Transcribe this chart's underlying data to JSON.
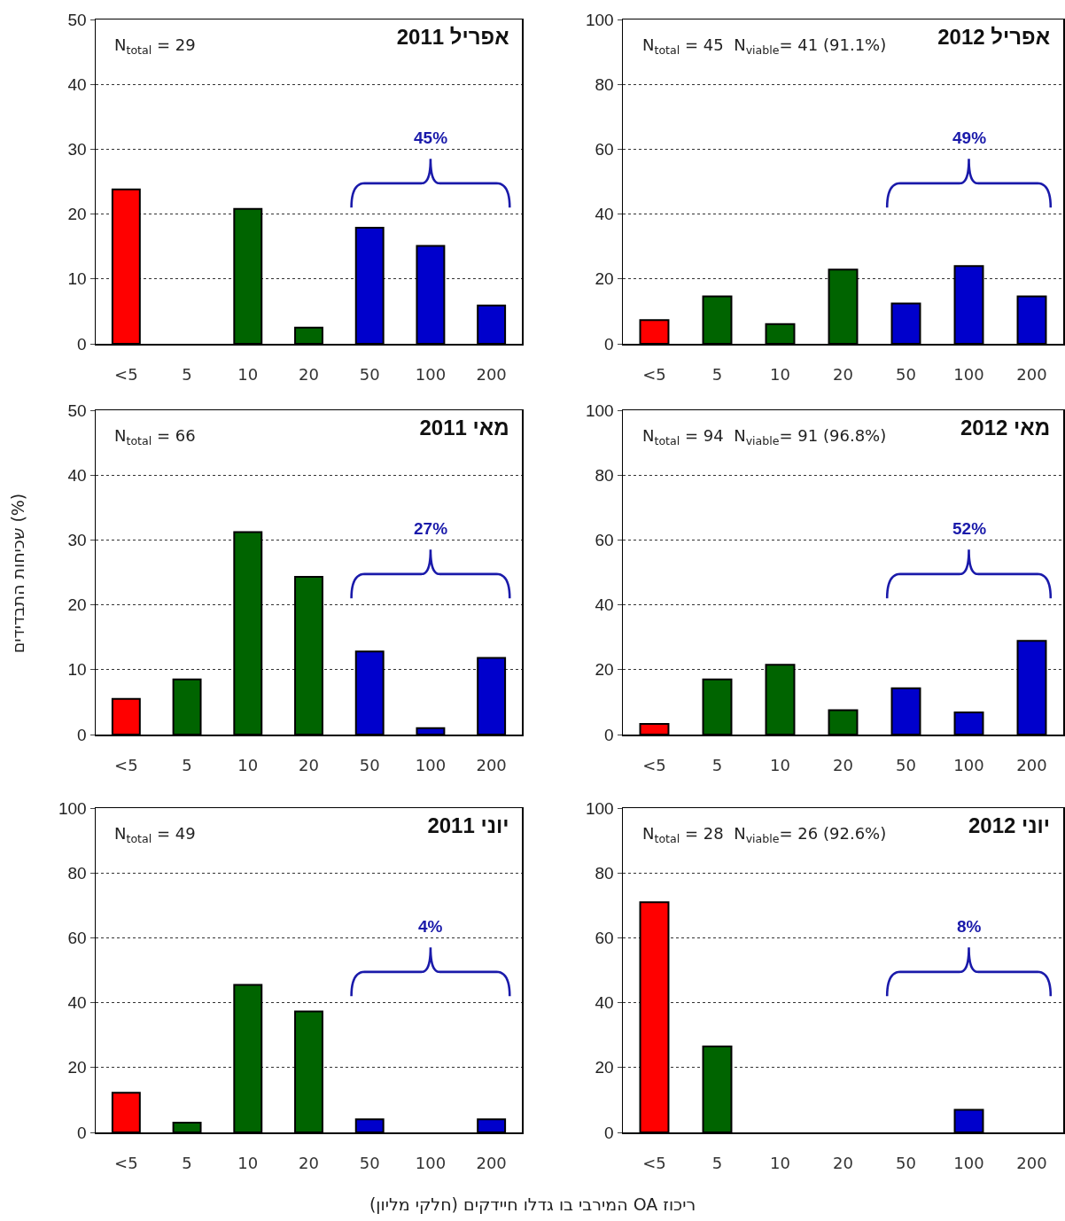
{
  "chart_data": [
    {
      "type": "bar",
      "title": "אפריל 2011",
      "categories": [
        "<5",
        "5",
        "10",
        "20",
        "50",
        "100",
        "200"
      ],
      "values": [
        23.8,
        0,
        20.8,
        2.5,
        17.9,
        15.1,
        5.9
      ],
      "colors": [
        "#ff0000",
        "#006400",
        "#006400",
        "#006400",
        "#0000cc",
        "#0000cc",
        "#0000cc"
      ],
      "ylim": [
        0,
        50
      ],
      "yticks": [
        0,
        10,
        20,
        30,
        40,
        50
      ],
      "grid": "y",
      "annotations": [
        "N$_{total}$ = 29",
        "45%"
      ]
    },
    {
      "type": "bar",
      "title": "אפריל 2012",
      "categories": [
        "<5",
        "5",
        "10",
        "20",
        "50",
        "100",
        "200"
      ],
      "values": [
        7.3,
        14.6,
        6.1,
        22.9,
        12.4,
        24.0,
        14.6
      ],
      "colors": [
        "#ff0000",
        "#006400",
        "#006400",
        "#006400",
        "#0000cc",
        "#0000cc",
        "#0000cc"
      ],
      "ylim": [
        0,
        100
      ],
      "yticks": [
        0,
        20,
        40,
        60,
        80,
        100
      ],
      "grid": "y",
      "annotations": [
        "N$_{total}$ = 45  N$_{viable}$= 41 (91.1%)",
        "49%"
      ]
    },
    {
      "type": "bar",
      "title": "מאי 2011",
      "ylabel": "שכיחות התבדידים (%)",
      "categories": [
        "<5",
        "5",
        "10",
        "20",
        "50",
        "100",
        "200"
      ],
      "values": [
        5.5,
        8.5,
        31.2,
        24.3,
        12.8,
        1.0,
        11.8
      ],
      "colors": [
        "#ff0000",
        "#006400",
        "#006400",
        "#006400",
        "#0000cc",
        "#0000cc",
        "#0000cc"
      ],
      "ylim": [
        0,
        50
      ],
      "yticks": [
        0,
        10,
        20,
        30,
        40,
        50
      ],
      "grid": "y",
      "annotations": [
        "N$_{total}$ = 66",
        "27%"
      ]
    },
    {
      "type": "bar",
      "title": "מאי 2012",
      "categories": [
        "<5",
        "5",
        "10",
        "20",
        "50",
        "100",
        "200"
      ],
      "values": [
        3.3,
        17.0,
        21.5,
        7.5,
        14.3,
        6.8,
        28.9
      ],
      "colors": [
        "#ff0000",
        "#006400",
        "#006400",
        "#006400",
        "#0000cc",
        "#0000cc",
        "#0000cc"
      ],
      "ylim": [
        0,
        100
      ],
      "yticks": [
        0,
        20,
        40,
        60,
        80,
        100
      ],
      "grid": "y",
      "annotations": [
        "N$_{total}$ = 94  N$_{viable}$= 91 (96.8%)",
        "52%"
      ]
    },
    {
      "type": "bar",
      "title": "יוני 2011",
      "xlabel": "ריכוז OA המירבי בו גדלו חיידקים (חלקי מליון)",
      "categories": [
        "<5",
        "5",
        "10",
        "20",
        "50",
        "100",
        "200"
      ],
      "values": [
        12.2,
        3.0,
        45.5,
        37.3,
        4.0,
        0,
        4.0
      ],
      "colors": [
        "#ff0000",
        "#006400",
        "#006400",
        "#006400",
        "#0000cc",
        "#0000cc",
        "#0000cc"
      ],
      "ylim": [
        0,
        100
      ],
      "yticks": [
        0,
        20,
        40,
        60,
        80,
        100
      ],
      "grid": "y",
      "annotations": [
        "N$_{total}$ = 49",
        "4%"
      ]
    },
    {
      "type": "bar",
      "title": "יוני 2012",
      "categories": [
        "<5",
        "5",
        "10",
        "20",
        "50",
        "100",
        "200"
      ],
      "values": [
        71,
        26.5,
        0,
        0,
        0,
        7,
        0
      ],
      "colors": [
        "#ff0000",
        "#006400",
        "#006400",
        "#006400",
        "#0000cc",
        "#0000cc",
        "#0000cc"
      ],
      "ylim": [
        0,
        100
      ],
      "yticks": [
        0,
        20,
        40,
        60,
        80,
        100
      ],
      "grid": "y",
      "annotations": [
        "N$_{total}$ = 28  N$_{viable}$= 26 (92.6%)",
        "8%"
      ]
    }
  ]
}
